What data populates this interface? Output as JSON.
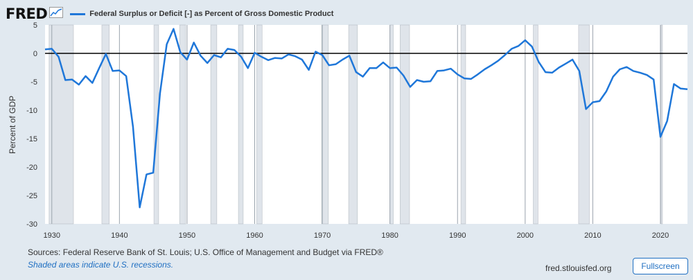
{
  "header": {
    "logo": "FRED",
    "logo_icon": "chart-line-icon",
    "series_label": "Federal Surplus or Deficit [-] as Percent of Gross Domestic Product",
    "series_color": "#1f77d9"
  },
  "footer": {
    "sources": "Sources: Federal Reserve Bank of St. Louis; U.S. Office of Management and Budget via FRED®",
    "note": "Shaded areas indicate U.S. recessions.",
    "site": "fred.stlouisfed.org",
    "fullscreen_label": "Fullscreen",
    "fullscreen_icon": "expand-icon"
  },
  "chart_data": {
    "type": "line",
    "title": "Federal Surplus or Deficit [-] as Percent of Gross Domestic Product",
    "ylabel": "Percent of GDP",
    "xlabel": "",
    "ylim": [
      -30,
      5
    ],
    "xlim": [
      1929,
      2024
    ],
    "yticks": [
      5,
      0,
      -5,
      -10,
      -15,
      -20,
      -25,
      -30
    ],
    "xticks": [
      1930,
      1940,
      1950,
      1960,
      1970,
      1980,
      1990,
      2000,
      2010,
      2020
    ],
    "grid": "vertical",
    "zero_line": true,
    "line_color": "#1f77d9",
    "recession_color": "#dfe4ea",
    "recessions": [
      [
        1929.6,
        1933.2
      ],
      [
        1937.4,
        1938.5
      ],
      [
        1945.1,
        1945.8
      ],
      [
        1948.9,
        1949.8
      ],
      [
        1953.5,
        1954.4
      ],
      [
        1957.6,
        1958.3
      ],
      [
        1960.3,
        1961.1
      ],
      [
        1969.9,
        1970.9
      ],
      [
        1973.9,
        1975.2
      ],
      [
        1980.0,
        1980.5
      ],
      [
        1981.5,
        1982.9
      ],
      [
        1990.5,
        1991.2
      ],
      [
        2001.2,
        2001.9
      ],
      [
        2007.9,
        2009.5
      ],
      [
        2020.1,
        2020.3
      ]
    ],
    "series": [
      {
        "x": [
          1929,
          1930,
          1931,
          1932,
          1933,
          1934,
          1935,
          1936,
          1937,
          1938,
          1939,
          1940,
          1941,
          1942,
          1943,
          1944,
          1945,
          1946,
          1947,
          1948,
          1949,
          1950,
          1951,
          1952,
          1953,
          1954,
          1955,
          1956,
          1957,
          1958,
          1959,
          1960,
          1961,
          1962,
          1963,
          1964,
          1965,
          1966,
          1967,
          1968,
          1969,
          1970,
          1971,
          1972,
          1973,
          1974,
          1975,
          1976,
          1977,
          1978,
          1979,
          1980,
          1981,
          1982,
          1983,
          1984,
          1985,
          1986,
          1987,
          1988,
          1989,
          1990,
          1991,
          1992,
          1993,
          1994,
          1995,
          1996,
          1997,
          1998,
          1999,
          2000,
          2001,
          2002,
          2003,
          2004,
          2005,
          2006,
          2007,
          2008,
          2009,
          2010,
          2011,
          2012,
          2013,
          2014,
          2015,
          2016,
          2017,
          2018,
          2019,
          2020,
          2021,
          2022,
          2023,
          2024
        ],
        "values": [
          0.7,
          0.8,
          -0.6,
          -4.7,
          -4.6,
          -5.5,
          -4.0,
          -5.2,
          -2.6,
          -0.1,
          -3.1,
          -3.0,
          -4.0,
          -12.9,
          -27.1,
          -21.3,
          -21.0,
          -7.0,
          1.6,
          4.3,
          0.2,
          -1.1,
          1.9,
          -0.4,
          -1.7,
          -0.3,
          -0.7,
          0.8,
          0.6,
          -0.6,
          -2.6,
          0.1,
          -0.6,
          -1.2,
          -0.8,
          -0.9,
          -0.2,
          -0.5,
          -1.1,
          -2.9,
          0.3,
          -0.3,
          -2.1,
          -1.9,
          -1.1,
          -0.4,
          -3.3,
          -4.1,
          -2.6,
          -2.6,
          -1.6,
          -2.6,
          -2.5,
          -3.9,
          -5.9,
          -4.7,
          -5.0,
          -4.9,
          -3.1,
          -3.0,
          -2.7,
          -3.7,
          -4.4,
          -4.5,
          -3.7,
          -2.8,
          -2.1,
          -1.3,
          -0.3,
          0.8,
          1.3,
          2.3,
          1.2,
          -1.5,
          -3.3,
          -3.4,
          -2.5,
          -1.8,
          -1.1,
          -3.1,
          -9.8,
          -8.6,
          -8.4,
          -6.7,
          -4.1,
          -2.8,
          -2.4,
          -3.1,
          -3.4,
          -3.8,
          -4.6,
          -14.7,
          -11.9,
          -5.4,
          -6.2,
          -6.3
        ]
      }
    ]
  }
}
